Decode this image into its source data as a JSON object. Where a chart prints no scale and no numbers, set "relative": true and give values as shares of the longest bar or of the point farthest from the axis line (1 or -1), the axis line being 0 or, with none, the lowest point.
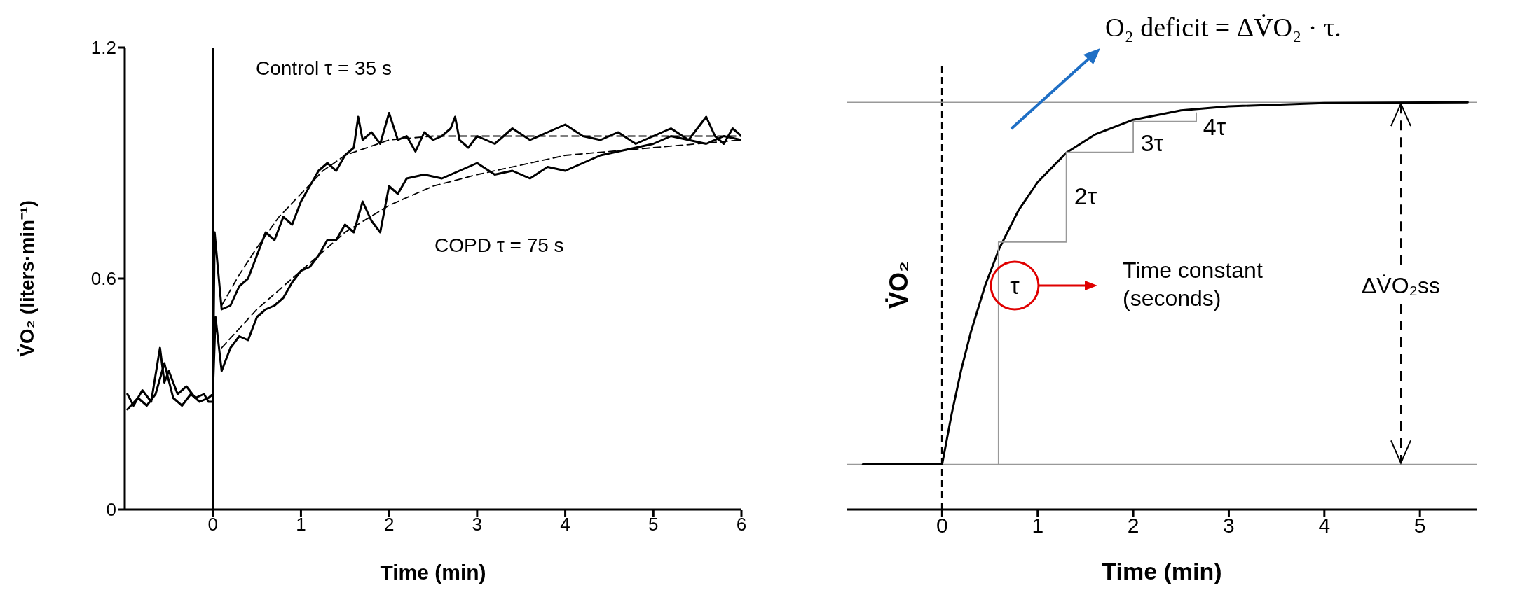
{
  "chart_data": [
    {
      "type": "line",
      "xlabel": "Time (min)",
      "ylabel": "V̇O₂ (liters·min⁻¹)",
      "xlim": [
        -1,
        6
      ],
      "xticks": [
        0,
        1,
        2,
        3,
        4,
        5,
        6
      ],
      "ylim": [
        0,
        1.2
      ],
      "yticks": [
        0,
        0.6,
        1.2
      ],
      "grid": false,
      "legend": false,
      "marker": "none",
      "series": [
        {
          "color": "#000000",
          "x": [
            -0.97,
            -0.9,
            -0.8,
            -0.7,
            -0.6,
            -0.55,
            -0.5,
            -0.4,
            -0.3,
            -0.2,
            -0.1,
            -0.05,
            0,
            0.02,
            0.1,
            0.2,
            0.3,
            0.4,
            0.5,
            0.6,
            0.7,
            0.8,
            0.9,
            1.0,
            1.1,
            1.2,
            1.3,
            1.4,
            1.5,
            1.6,
            1.65,
            1.7,
            1.8,
            1.9,
            2.0,
            2.1,
            2.2,
            2.3,
            2.4,
            2.5,
            2.6,
            2.7,
            2.75,
            2.8,
            2.9,
            3.0,
            3.2,
            3.4,
            3.6,
            3.8,
            4.0,
            4.2,
            4.4,
            4.6,
            4.8,
            5.0,
            5.2,
            5.4,
            5.6,
            5.7,
            5.8,
            5.9,
            6.0
          ],
          "values": [
            0.3,
            0.27,
            0.31,
            0.28,
            0.42,
            0.33,
            0.36,
            0.3,
            0.32,
            0.29,
            0.3,
            0.28,
            0.28,
            0.72,
            0.52,
            0.53,
            0.58,
            0.6,
            0.66,
            0.72,
            0.7,
            0.76,
            0.74,
            0.8,
            0.84,
            0.88,
            0.9,
            0.88,
            0.92,
            0.94,
            1.02,
            0.96,
            0.98,
            0.95,
            1.03,
            0.96,
            0.97,
            0.93,
            0.98,
            0.96,
            0.97,
            0.99,
            1.02,
            0.96,
            0.94,
            0.97,
            0.95,
            0.99,
            0.96,
            0.98,
            1.0,
            0.97,
            0.96,
            0.98,
            0.95,
            0.97,
            0.99,
            0.96,
            1.02,
            0.97,
            0.95,
            0.99,
            0.97
          ]
        },
        {
          "color": "#000000",
          "x": [
            -0.97,
            -0.85,
            -0.75,
            -0.65,
            -0.55,
            -0.45,
            -0.35,
            -0.25,
            -0.15,
            -0.05,
            0,
            0.03,
            0.1,
            0.2,
            0.3,
            0.4,
            0.5,
            0.6,
            0.7,
            0.8,
            0.9,
            1.0,
            1.1,
            1.2,
            1.3,
            1.4,
            1.5,
            1.6,
            1.7,
            1.8,
            1.9,
            2.0,
            2.1,
            2.2,
            2.4,
            2.6,
            2.8,
            3.0,
            3.2,
            3.4,
            3.6,
            3.8,
            4.0,
            4.2,
            4.4,
            4.6,
            4.8,
            5.0,
            5.2,
            5.4,
            5.6,
            5.8,
            6.0
          ],
          "values": [
            0.26,
            0.29,
            0.27,
            0.3,
            0.38,
            0.29,
            0.27,
            0.3,
            0.28,
            0.29,
            0.3,
            0.5,
            0.36,
            0.42,
            0.45,
            0.44,
            0.5,
            0.52,
            0.53,
            0.55,
            0.59,
            0.62,
            0.63,
            0.66,
            0.7,
            0.7,
            0.74,
            0.72,
            0.8,
            0.75,
            0.72,
            0.84,
            0.82,
            0.86,
            0.87,
            0.86,
            0.88,
            0.9,
            0.87,
            0.88,
            0.86,
            0.89,
            0.88,
            0.9,
            0.92,
            0.93,
            0.94,
            0.95,
            0.97,
            0.96,
            0.95,
            0.97,
            0.96
          ]
        },
        {
          "color": "#000000",
          "line_style": "dashed",
          "x": [
            0.1,
            0.3,
            0.5,
            0.75,
            1,
            1.25,
            1.5,
            2,
            2.5,
            3,
            4,
            5,
            6
          ],
          "values": [
            0.53,
            0.61,
            0.68,
            0.76,
            0.82,
            0.88,
            0.92,
            0.96,
            0.97,
            0.97,
            0.97,
            0.97,
            0.97
          ]
        },
        {
          "color": "#000000",
          "line_style": "dashed",
          "x": [
            0.1,
            0.5,
            1,
            1.5,
            2,
            2.5,
            3,
            4,
            5,
            6
          ],
          "values": [
            0.42,
            0.52,
            0.62,
            0.72,
            0.79,
            0.84,
            0.87,
            0.92,
            0.94,
            0.96
          ]
        }
      ],
      "ref_lines": [
        {
          "axis": "x",
          "value": 0,
          "color": "#000000"
        }
      ],
      "annotations": [
        "Control τ = 35 s",
        "COPD τ = 75 s"
      ]
    },
    {
      "type": "line",
      "relative": true,
      "xlabel": "Time (min)",
      "ylabel": "V̇O₂",
      "xlim": [
        -1,
        5.6
      ],
      "xticks": [
        0,
        1,
        2,
        3,
        4,
        5
      ],
      "grid": false,
      "legend": false,
      "marker": "none",
      "series": [
        {
          "color": "#000000",
          "x": [
            -0.83,
            0,
            0.1,
            0.2,
            0.3,
            0.45,
            0.6,
            0.8,
            1.0,
            1.3,
            1.6,
            2.0,
            2.5,
            3,
            4,
            5.5
          ],
          "values": [
            0.111,
            0.111,
            0.235,
            0.343,
            0.435,
            0.55,
            0.642,
            0.735,
            0.804,
            0.876,
            0.921,
            0.957,
            0.98,
            0.99,
            0.998,
            1.0
          ]
        },
        {
          "type": "step",
          "color": "#999999",
          "x": [
            0.59,
            0.59,
            1.3,
            2.0,
            2.66
          ],
          "values": [
            0.111,
            0.657,
            0.877,
            0.953,
            0.974
          ]
        }
      ],
      "ref_lines": [
        {
          "axis": "x",
          "value": 0,
          "line_style": "dashed",
          "color": "#000000"
        },
        {
          "axis": "y",
          "value": 0.111,
          "color": "#999999"
        },
        {
          "axis": "y",
          "value": 1,
          "color": "#999999"
        }
      ],
      "annotations": [
        "O₂ deficit = ΔV̇O₂ · τ.",
        "τ",
        "2τ",
        "3τ",
        "4τ",
        "Time constant (seconds)",
        "ΔV̇O₂ss"
      ]
    }
  ]
}
